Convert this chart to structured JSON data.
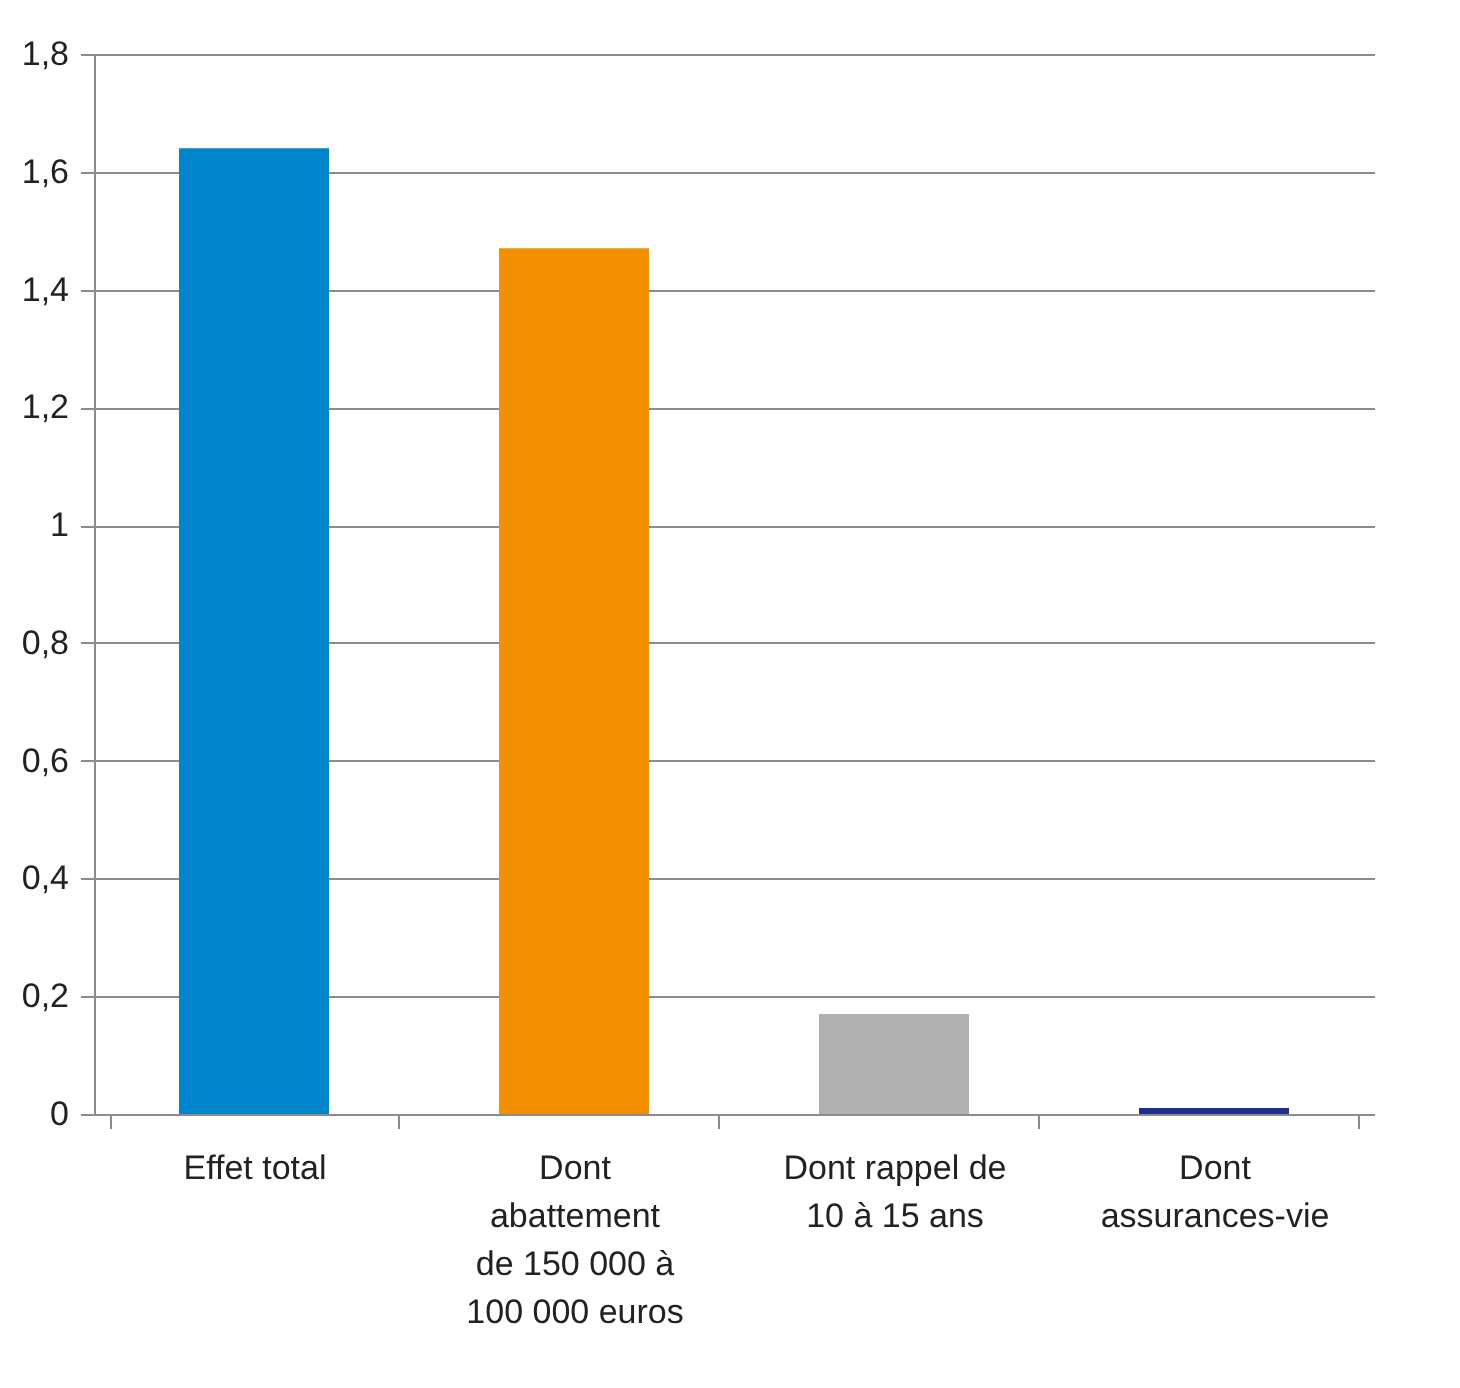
{
  "chart_data": {
    "type": "bar",
    "categories": [
      "Effet total",
      "Dont\nabattement\nde 150 000 à\n100 000 euros",
      "Dont rappel de\n10 à 15 ans",
      "Dont\nassurances-vie"
    ],
    "values": [
      1.64,
      1.47,
      0.17,
      0.01
    ],
    "colors": [
      "#0084cc",
      "#f39000",
      "#b0b0b0",
      "#1f2f8c"
    ],
    "ylim": [
      0,
      1.8
    ],
    "yticks": [
      {
        "value": 0,
        "label": "0"
      },
      {
        "value": 0.2,
        "label": "0,2"
      },
      {
        "value": 0.4,
        "label": "0,4"
      },
      {
        "value": 0.6,
        "label": "0,6"
      },
      {
        "value": 0.8,
        "label": "0,8"
      },
      {
        "value": 1,
        "label": "1"
      },
      {
        "value": 1.2,
        "label": "1,2"
      },
      {
        "value": 1.4,
        "label": "1,4"
      },
      {
        "value": 1.6,
        "label": "1,6"
      },
      {
        "value": 1.8,
        "label": "1,8"
      }
    ],
    "grid": "y"
  }
}
